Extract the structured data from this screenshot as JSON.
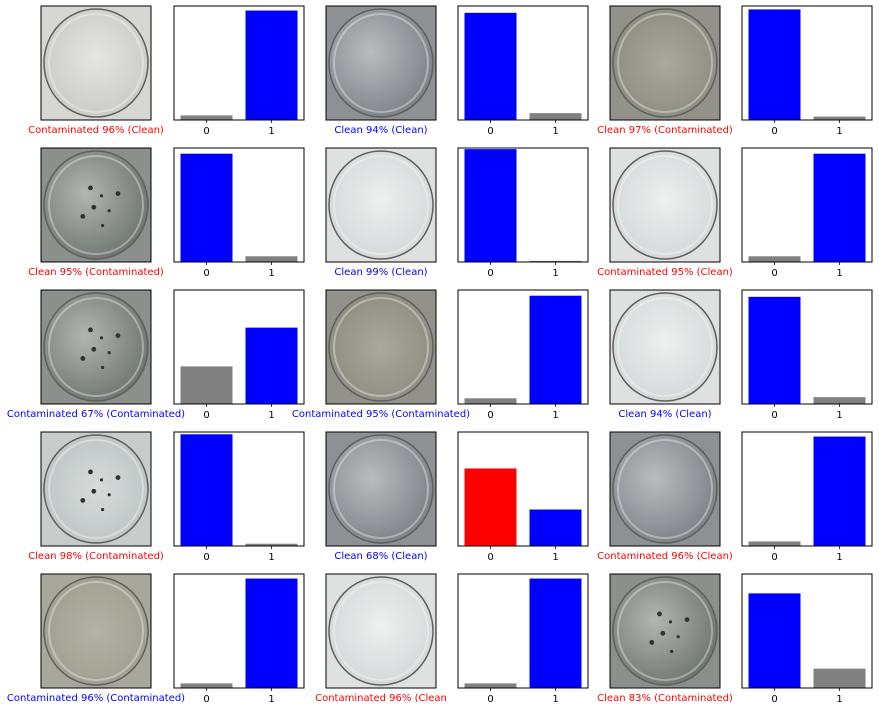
{
  "colors": {
    "correct": "#0000ff",
    "wrong": "#ff0000",
    "other_bar": "#808080",
    "frame": "#000000"
  },
  "chart_data": [
    {
      "type": "bar",
      "caption": {
        "text": "Contaminated 96% (Clean)",
        "correct": false
      },
      "image": {
        "tone": "light",
        "spots": false
      },
      "categories": [
        "0",
        "1"
      ],
      "values": [
        0.04,
        0.96
      ],
      "ylim": [
        0,
        1
      ]
    },
    {
      "type": "bar",
      "caption": {
        "text": "Clean 94% (Clean)",
        "correct": true
      },
      "image": {
        "tone": "mid",
        "spots": false
      },
      "categories": [
        "0",
        "1"
      ],
      "values": [
        0.94,
        0.06
      ],
      "ylim": [
        0,
        1
      ]
    },
    {
      "type": "bar",
      "caption": {
        "text": "Clean 97% (Contaminated)",
        "correct": false
      },
      "image": {
        "tone": "olive",
        "spots": false
      },
      "categories": [
        "0",
        "1"
      ],
      "values": [
        0.97,
        0.03
      ],
      "ylim": [
        0,
        1
      ]
    },
    {
      "type": "bar",
      "caption": {
        "text": "Clean 95% (Contaminated)",
        "correct": false
      },
      "image": {
        "tone": "dark",
        "spots": true
      },
      "categories": [
        "0",
        "1"
      ],
      "values": [
        0.95,
        0.05
      ],
      "ylim": [
        0,
        1
      ]
    },
    {
      "type": "bar",
      "caption": {
        "text": "Clean 99% (Clean)",
        "correct": true
      },
      "image": {
        "tone": "bright",
        "spots": false
      },
      "categories": [
        "0",
        "1"
      ],
      "values": [
        0.99,
        0.01
      ],
      "ylim": [
        0,
        1
      ]
    },
    {
      "type": "bar",
      "caption": {
        "text": "Contaminated 95% (Clean)",
        "correct": false
      },
      "image": {
        "tone": "bright",
        "spots": false
      },
      "categories": [
        "0",
        "1"
      ],
      "values": [
        0.05,
        0.95
      ],
      "ylim": [
        0,
        1
      ]
    },
    {
      "type": "bar",
      "caption": {
        "text": "Contaminated 67% (Contaminated)",
        "correct": true
      },
      "image": {
        "tone": "dark",
        "spots": true
      },
      "categories": [
        "0",
        "1"
      ],
      "values": [
        0.33,
        0.67
      ],
      "ylim": [
        0,
        1
      ]
    },
    {
      "type": "bar",
      "caption": {
        "text": "Contaminated 95% (Contaminated)",
        "correct": true
      },
      "image": {
        "tone": "olive",
        "spots": false
      },
      "categories": [
        "0",
        "1"
      ],
      "values": [
        0.05,
        0.95
      ],
      "ylim": [
        0,
        1
      ]
    },
    {
      "type": "bar",
      "caption": {
        "text": "Clean 94% (Clean)",
        "correct": true
      },
      "image": {
        "tone": "bright",
        "spots": false
      },
      "categories": [
        "0",
        "1"
      ],
      "values": [
        0.94,
        0.06
      ],
      "ylim": [
        0,
        1
      ]
    },
    {
      "type": "bar",
      "caption": {
        "text": "Clean 98% (Contaminated)",
        "correct": false
      },
      "image": {
        "tone": "pale",
        "spots": true
      },
      "categories": [
        "0",
        "1"
      ],
      "values": [
        0.98,
        0.02
      ],
      "ylim": [
        0,
        1
      ]
    },
    {
      "type": "bar",
      "caption": {
        "text": "Clean 68% (Clean)",
        "correct": true
      },
      "image": {
        "tone": "mid",
        "spots": false
      },
      "categories": [
        "0",
        "1"
      ],
      "values": [
        0.68,
        0.32
      ],
      "ylim": [
        0,
        1
      ],
      "wrong_class": 0
    },
    {
      "type": "bar",
      "caption": {
        "text": "Contaminated 96% (Clean)",
        "correct": false
      },
      "image": {
        "tone": "mid",
        "spots": false
      },
      "categories": [
        "0",
        "1"
      ],
      "values": [
        0.04,
        0.96
      ],
      "ylim": [
        0,
        1
      ]
    },
    {
      "type": "bar",
      "caption": {
        "text": "Contaminated 96% (Contaminated)",
        "correct": true
      },
      "image": {
        "tone": "olive_light",
        "spots": false
      },
      "categories": [
        "0",
        "1"
      ],
      "values": [
        0.04,
        0.96
      ],
      "ylim": [
        0,
        1
      ]
    },
    {
      "type": "bar",
      "caption": {
        "text": "Contaminated 96% (Clean",
        "correct": false
      },
      "image": {
        "tone": "bright",
        "spots": false
      },
      "categories": [
        "0",
        "1"
      ],
      "values": [
        0.04,
        0.96
      ],
      "ylim": [
        0,
        1
      ]
    },
    {
      "type": "bar",
      "caption": {
        "text": "Clean 83% (Contaminated)",
        "correct": false
      },
      "image": {
        "tone": "dark",
        "spots": true
      },
      "categories": [
        "0",
        "1"
      ],
      "values": [
        0.83,
        0.17
      ],
      "ylim": [
        0,
        1
      ]
    }
  ]
}
